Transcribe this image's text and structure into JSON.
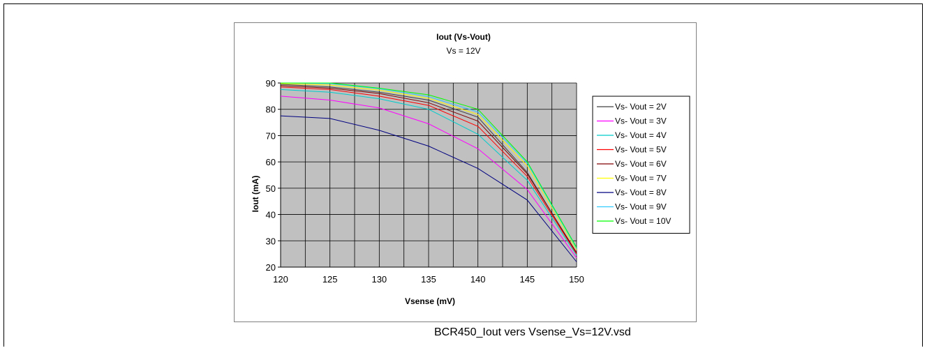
{
  "caption": "BCR450_Iout vers Vsense_Vs=12V.vsd",
  "chart_data": {
    "type": "line",
    "title": "Iout (Vs-Vout)",
    "subtitle": "Vs = 12V",
    "xlabel": "Vsense (mV)",
    "ylabel": "Iout  (mA)",
    "xlim": [
      120,
      150
    ],
    "ylim": [
      20,
      90
    ],
    "x_ticks": [
      120,
      125,
      130,
      135,
      140,
      145,
      150
    ],
    "y_ticks": [
      20,
      30,
      40,
      50,
      60,
      70,
      80,
      90
    ],
    "grid": true,
    "plot_background": "#c0c0c0",
    "legend_position": "right",
    "x": [
      120,
      125,
      130,
      135,
      140,
      145,
      150
    ],
    "series": [
      {
        "name": "Vs- Vout = 2V",
        "color": "#404040",
        "values": [
          89.5,
          88.5,
          86.5,
          83.5,
          77.0,
          56.0,
          25.0
        ]
      },
      {
        "name": "Vs- Vout = 3V",
        "color": "#ff00ff",
        "values": [
          85.0,
          83.5,
          80.5,
          74.5,
          65.0,
          49.5,
          23.5
        ]
      },
      {
        "name": "Vs- Vout = 4V",
        "color": "#00cccc",
        "values": [
          87.5,
          86.5,
          84.0,
          80.0,
          70.5,
          53.0,
          24.5
        ]
      },
      {
        "name": "Vs- Vout = 5V",
        "color": "#ff0000",
        "values": [
          88.5,
          87.5,
          85.0,
          81.5,
          73.5,
          54.5,
          25.0
        ]
      },
      {
        "name": "Vs- Vout = 6V",
        "color": "#800000",
        "values": [
          89.0,
          88.0,
          86.0,
          82.5,
          75.5,
          55.5,
          25.5
        ]
      },
      {
        "name": "Vs- Vout = 7V",
        "color": "#ffff00",
        "values": [
          89.8,
          89.2,
          87.3,
          84.2,
          78.0,
          58.5,
          26.5
        ]
      },
      {
        "name": "Vs- Vout = 8V",
        "color": "#000080",
        "values": [
          77.5,
          76.5,
          72.0,
          66.0,
          57.5,
          45.5,
          22.0
        ]
      },
      {
        "name": "Vs- Vout = 9V",
        "color": "#33ccff",
        "values": [
          90.0,
          89.8,
          87.8,
          84.8,
          79.0,
          59.5,
          27.0
        ]
      },
      {
        "name": "Vs- Vout = 10V",
        "color": "#00ff00",
        "values": [
          90.0,
          90.0,
          88.0,
          85.5,
          80.0,
          60.0,
          27.5
        ]
      }
    ]
  }
}
